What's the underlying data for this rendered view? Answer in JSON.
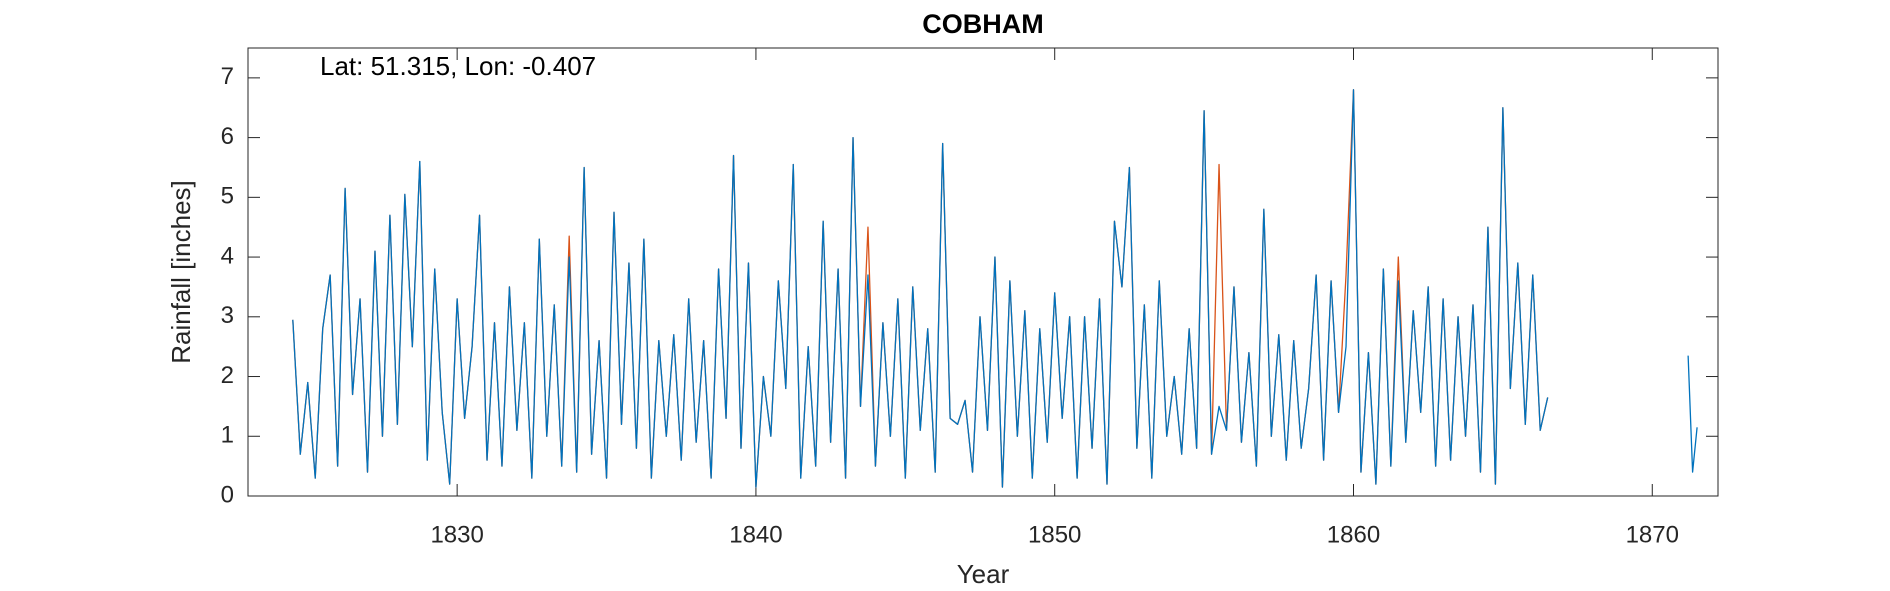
{
  "chart_data": {
    "type": "line",
    "title": "COBHAM",
    "annotation": "Lat: 51.315, Lon: -0.407",
    "x_label": "Year",
    "y_label": "Rainfall [inches]",
    "xlim": [
      1823,
      1872.2
    ],
    "ylim": [
      0,
      7.5
    ],
    "xticks": [
      1830,
      1840,
      1850,
      1860,
      1870
    ],
    "yticks": [
      0,
      1,
      2,
      3,
      4,
      5,
      6,
      7
    ],
    "x": [
      1824.5,
      1824.75,
      1825,
      1825.25,
      1825.5,
      1825.75,
      1826,
      1826.25,
      1826.5,
      1826.75,
      1827,
      1827.25,
      1827.5,
      1827.75,
      1828,
      1828.25,
      1828.5,
      1828.75,
      1829,
      1829.25,
      1829.5,
      1829.75,
      1830,
      1830.25,
      1830.5,
      1830.75,
      1831,
      1831.25,
      1831.5,
      1831.75,
      1832,
      1832.25,
      1832.5,
      1832.75,
      1833,
      1833.25,
      1833.5,
      1833.75,
      1834,
      1834.25,
      1834.5,
      1834.75,
      1835,
      1835.25,
      1835.5,
      1835.75,
      1836,
      1836.25,
      1836.5,
      1836.75,
      1837,
      1837.25,
      1837.5,
      1837.75,
      1838,
      1838.25,
      1838.5,
      1838.75,
      1839,
      1839.25,
      1839.5,
      1839.75,
      1840,
      1840.25,
      1840.5,
      1840.75,
      1841,
      1841.25,
      1841.5,
      1841.75,
      1842,
      1842.25,
      1842.5,
      1842.75,
      1843,
      1843.25,
      1843.5,
      1843.75,
      1844,
      1844.25,
      1844.5,
      1844.75,
      1845,
      1845.25,
      1845.5,
      1845.75,
      1846,
      1846.25,
      1846.5,
      1846.75,
      1847,
      1847.25,
      1847.5,
      1847.75,
      1848,
      1848.25,
      1848.5,
      1848.75,
      1849,
      1849.25,
      1849.5,
      1849.75,
      1850,
      1850.25,
      1850.5,
      1850.75,
      1851,
      1851.25,
      1851.5,
      1851.75,
      1852,
      1852.25,
      1852.5,
      1852.75,
      1853,
      1853.25,
      1853.5,
      1853.75,
      1854,
      1854.25,
      1854.5,
      1854.75,
      1855,
      1855.25,
      1855.5,
      1855.75,
      1856,
      1856.25,
      1856.5,
      1856.75,
      1857,
      1857.25,
      1857.5,
      1857.75,
      1858,
      1858.25,
      1858.5,
      1858.75,
      1859,
      1859.25,
      1859.5,
      1859.75,
      1860,
      1860.25,
      1860.5,
      1860.75,
      1861,
      1861.25,
      1861.5,
      1861.75,
      1862,
      1862.25,
      1862.5,
      1862.75,
      1863,
      1863.25,
      1863.5,
      1863.75,
      1864,
      1864.25,
      1864.5,
      1864.75,
      1865,
      1865.25,
      1865.5,
      1865.75,
      1866,
      1866.25,
      1866.5,
      1869,
      1871.2,
      1871.35,
      1871.5
    ],
    "series": [
      {
        "color": "#D95319",
        "values": [
          2.95,
          0.7,
          1.9,
          0.3,
          2.8,
          3.7,
          0.5,
          5.15,
          1.7,
          3.3,
          0.4,
          4.1,
          1.0,
          4.7,
          1.2,
          5.05,
          2.5,
          5.6,
          0.6,
          3.8,
          1.4,
          0.2,
          3.3,
          1.3,
          2.5,
          4.7,
          0.6,
          2.9,
          0.5,
          3.5,
          1.1,
          2.9,
          0.3,
          4.3,
          1.0,
          3.2,
          0.5,
          4.35,
          0.4,
          5.5,
          0.7,
          2.6,
          0.3,
          4.75,
          1.2,
          3.9,
          0.8,
          4.3,
          0.3,
          2.6,
          1.0,
          2.7,
          0.6,
          3.3,
          0.9,
          2.6,
          0.3,
          3.8,
          1.3,
          5.7,
          0.8,
          3.9,
          0.15,
          2.0,
          1.0,
          3.6,
          1.8,
          5.55,
          0.3,
          2.5,
          0.5,
          4.6,
          0.9,
          3.8,
          0.3,
          6.0,
          1.5,
          4.5,
          0.5,
          2.9,
          1.0,
          3.3,
          0.3,
          3.5,
          1.1,
          2.8,
          0.4,
          5.9,
          1.3,
          1.2,
          1.6,
          0.4,
          3.0,
          1.1,
          4.0,
          0.15,
          3.6,
          1.0,
          3.1,
          0.3,
          2.8,
          0.9,
          3.4,
          1.3,
          3.0,
          0.3,
          3.0,
          0.8,
          3.3,
          0.2,
          4.6,
          3.5,
          5.5,
          0.8,
          3.2,
          0.3,
          3.6,
          1.0,
          2.0,
          0.7,
          2.8,
          0.8,
          6.45,
          0.7,
          5.55,
          1.1,
          3.5,
          0.9,
          2.4,
          0.5,
          4.8,
          1.0,
          2.7,
          0.6,
          2.6,
          0.8,
          1.8,
          3.7,
          0.6,
          3.6,
          1.4,
          3.7,
          6.8,
          0.4,
          2.4,
          0.2,
          3.8,
          0.5,
          4.0,
          0.9,
          3.1,
          1.4,
          3.5,
          0.5,
          3.3,
          0.6,
          3.0,
          1.0,
          3.2,
          0.4,
          4.5,
          0.2,
          6.5,
          1.8,
          3.9,
          1.2,
          3.7,
          1.1,
          1.65,
          null,
          null,
          null,
          null
        ]
      },
      {
        "color": "#0072BD",
        "values": [
          2.95,
          0.7,
          1.9,
          0.3,
          2.8,
          3.7,
          0.5,
          5.15,
          1.7,
          3.3,
          0.4,
          4.1,
          1.0,
          4.7,
          1.2,
          5.05,
          2.5,
          5.6,
          0.6,
          3.8,
          1.4,
          0.2,
          3.3,
          1.3,
          2.5,
          4.7,
          0.6,
          2.9,
          0.5,
          3.5,
          1.1,
          2.9,
          0.3,
          4.3,
          1.0,
          3.2,
          0.5,
          4.0,
          0.4,
          5.5,
          0.7,
          2.6,
          0.3,
          4.75,
          1.2,
          3.9,
          0.8,
          4.3,
          0.3,
          2.6,
          1.0,
          2.7,
          0.6,
          3.3,
          0.9,
          2.6,
          0.3,
          3.8,
          1.3,
          5.7,
          0.8,
          3.9,
          0.15,
          2.0,
          1.0,
          3.6,
          1.8,
          5.55,
          0.3,
          2.5,
          0.5,
          4.6,
          0.9,
          3.8,
          0.3,
          6.0,
          1.5,
          3.7,
          0.5,
          2.9,
          1.0,
          3.3,
          0.3,
          3.5,
          1.1,
          2.8,
          0.4,
          5.9,
          1.3,
          1.2,
          1.6,
          0.4,
          3.0,
          1.1,
          4.0,
          0.15,
          3.6,
          1.0,
          3.1,
          0.3,
          2.8,
          0.9,
          3.4,
          1.3,
          3.0,
          0.3,
          3.0,
          0.8,
          3.3,
          0.2,
          4.6,
          3.5,
          5.5,
          0.8,
          3.2,
          0.3,
          3.6,
          1.0,
          2.0,
          0.7,
          2.8,
          0.8,
          6.45,
          0.7,
          1.5,
          1.1,
          3.5,
          0.9,
          2.4,
          0.5,
          4.8,
          1.0,
          2.7,
          0.6,
          2.6,
          0.8,
          1.8,
          3.7,
          0.6,
          3.6,
          1.4,
          2.5,
          6.8,
          0.4,
          2.4,
          0.2,
          3.8,
          0.5,
          3.6,
          0.9,
          3.1,
          1.4,
          3.5,
          0.5,
          3.3,
          0.6,
          3.0,
          1.0,
          3.2,
          0.4,
          4.5,
          0.2,
          6.5,
          1.8,
          3.9,
          1.2,
          3.7,
          1.1,
          1.65,
          null,
          2.35,
          0.4,
          1.15
        ]
      }
    ]
  }
}
